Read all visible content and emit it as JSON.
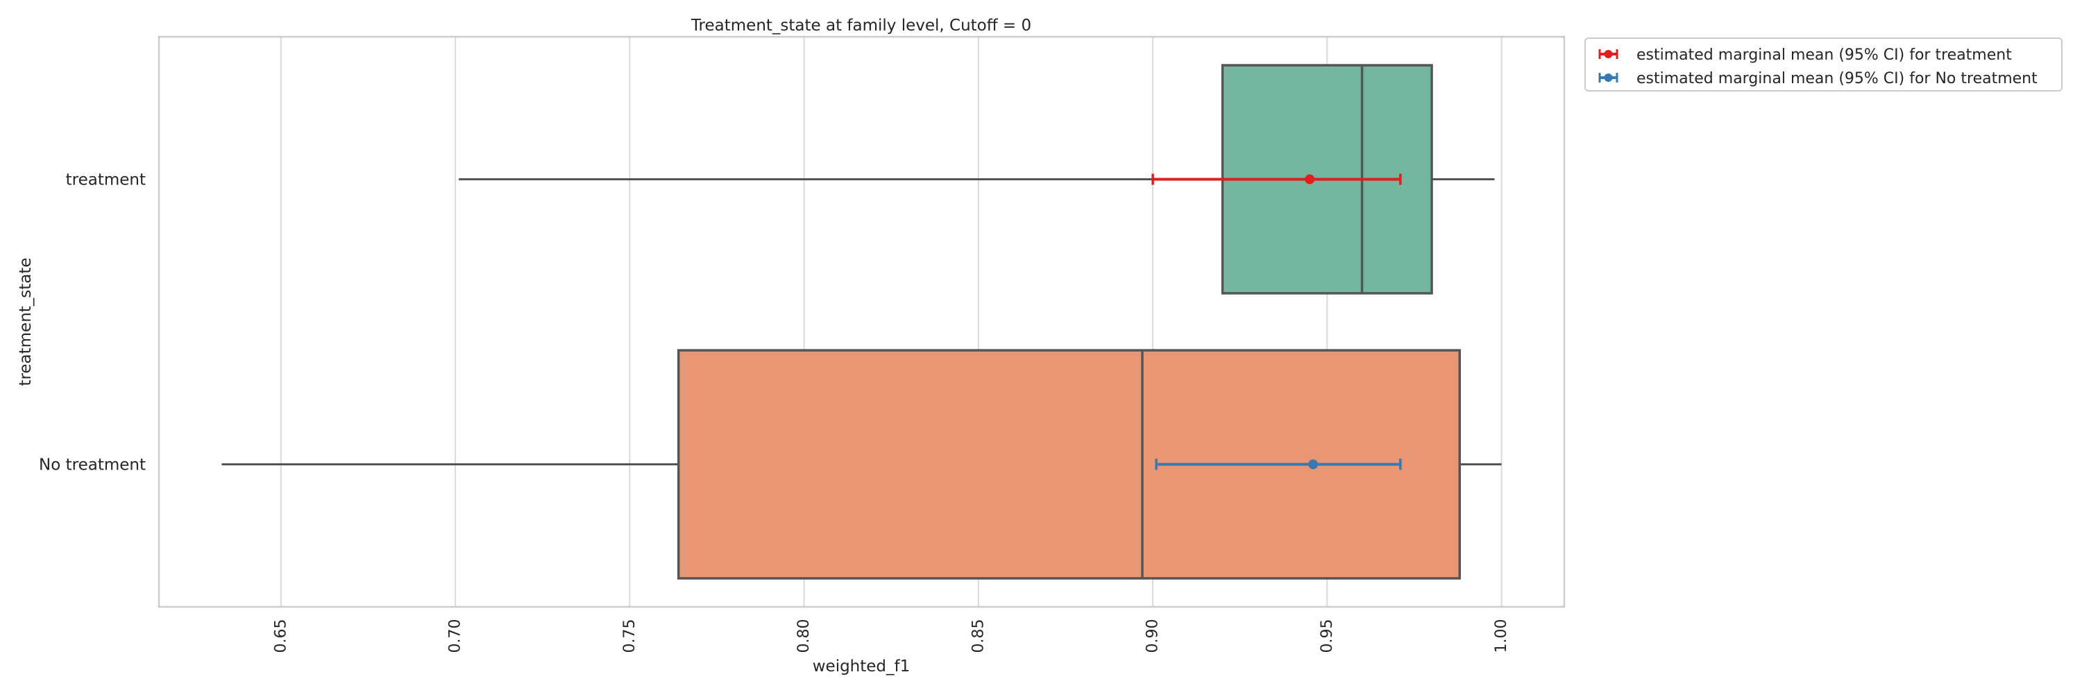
{
  "chart_data": {
    "type": "box",
    "title": "Treatment_state at family level, Cutoff = 0",
    "xlabel": "weighted_f1",
    "ylabel": "treatment_state",
    "xlim": [
      0.615,
      1.018
    ],
    "x_ticks": [
      "0.65",
      "0.70",
      "0.75",
      "0.80",
      "0.85",
      "0.90",
      "0.95",
      "1.00"
    ],
    "grid": true,
    "legend_position": "outside-top-right",
    "categories": [
      "treatment",
      "No treatment"
    ],
    "boxes": [
      {
        "category": "treatment",
        "whisker_low": 0.701,
        "q1": 0.92,
        "median": 0.96,
        "q3": 0.98,
        "whisker_high": 0.998,
        "color": "#74b6a0"
      },
      {
        "category": "No treatment",
        "whisker_low": 0.633,
        "q1": 0.764,
        "median": 0.897,
        "q3": 0.988,
        "whisker_high": 1.0,
        "color": "#e89673"
      }
    ],
    "series": [
      {
        "name": "estimated marginal mean (95% CI) for treatment",
        "category": "treatment",
        "mean": 0.945,
        "ci_low": 0.9,
        "ci_high": 0.971,
        "color": "#e01f1f"
      },
      {
        "name": "estimated marginal mean (95% CI) for No treatment",
        "category": "No treatment",
        "mean": 0.946,
        "ci_low": 0.901,
        "ci_high": 0.971,
        "color": "#3a78b0"
      }
    ]
  }
}
